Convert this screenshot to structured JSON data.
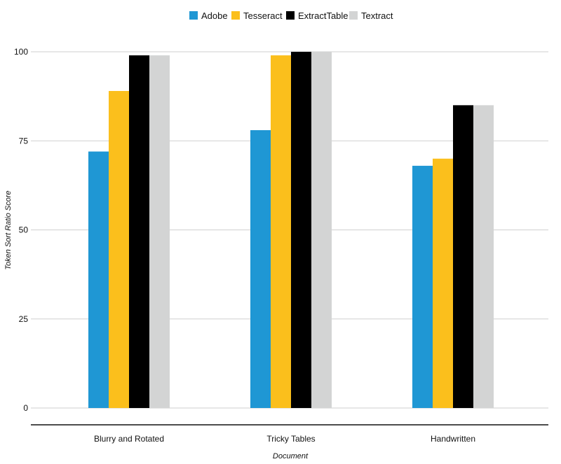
{
  "chart_data": {
    "type": "bar",
    "categories": [
      "Blurry and Rotated",
      "Tricky Tables",
      "Handwritten"
    ],
    "series": [
      {
        "name": "Adobe",
        "color": "#1f97d4",
        "values": [
          72,
          78,
          68
        ]
      },
      {
        "name": "Tesseract",
        "color": "#fbbf1c",
        "values": [
          89,
          99,
          70
        ]
      },
      {
        "name": "ExtractTable",
        "color": "#000000",
        "values": [
          99,
          100,
          85
        ]
      },
      {
        "name": "Textract",
        "color": "#d3d4d4",
        "values": [
          99,
          100,
          85
        ]
      }
    ],
    "xlabel": "Document",
    "ylabel": "Token Sort Ratio Score",
    "ylim": [
      0,
      100
    ],
    "yticks": [
      0,
      25,
      50,
      75,
      100
    ],
    "grid": true,
    "legend_position": "top-center"
  }
}
